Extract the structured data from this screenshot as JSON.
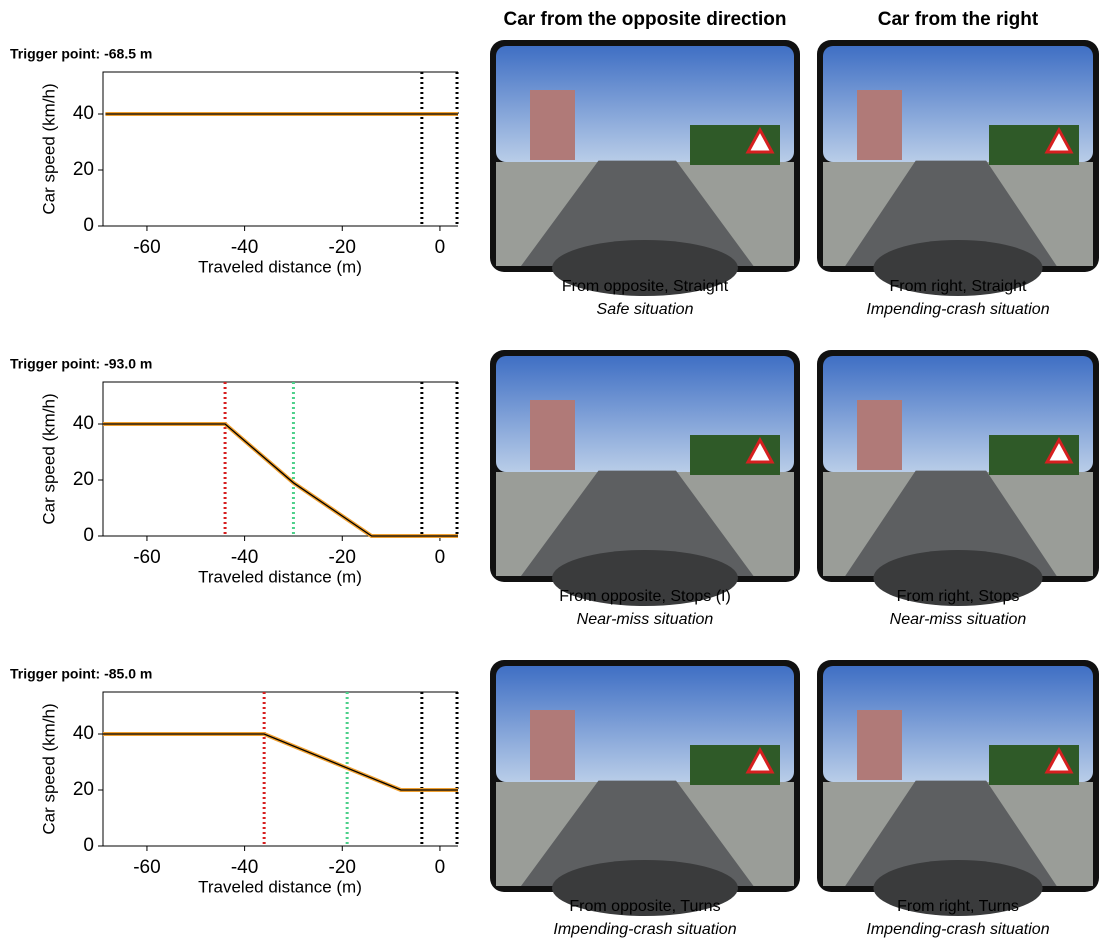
{
  "columns": [
    {
      "title": "Car from the opposite direction"
    },
    {
      "title": "Car from the right"
    }
  ],
  "panels": [
    [
      {
        "caption": "From opposite, Straight",
        "situation": "Safe situation"
      },
      {
        "caption": "From right, Straight",
        "situation": "Impending-crash situation"
      }
    ],
    [
      {
        "caption": "From opposite, Stops (I)",
        "situation": "Near-miss situation"
      },
      {
        "caption": "From right, Stops",
        "situation": "Near-miss situation"
      }
    ],
    [
      {
        "caption": "From opposite, Turns",
        "situation": "Impending-crash situation"
      },
      {
        "caption": "From right, Turns",
        "situation": "Impending-crash situation"
      }
    ]
  ],
  "chart_data": [
    {
      "type": "line",
      "title": "Trigger point: -68.5 m",
      "ylabel": "Car speed (km/h)",
      "xlabel": "Traveled distance (m)",
      "xlim": [
        -69,
        3.7
      ],
      "ylim": [
        0,
        55
      ],
      "xticks": [
        -60,
        -40,
        -20,
        0
      ],
      "yticks": [
        0,
        20,
        40
      ],
      "series": [
        {
          "color": "#f0a030",
          "edge_color": "#000000",
          "x": [
            -68.5,
            3.7
          ],
          "values": [
            40,
            40
          ]
        }
      ],
      "vlines": [
        {
          "x": -3.7,
          "color": "#000000"
        },
        {
          "x": 3.5,
          "color": "#000000"
        }
      ]
    },
    {
      "type": "line",
      "title": "Trigger point: -93.0 m",
      "ylabel": "Car speed (km/h)",
      "xlabel": "Traveled distance (m)",
      "xlim": [
        -69,
        3.7
      ],
      "ylim": [
        0,
        55
      ],
      "xticks": [
        -60,
        -40,
        -20,
        0
      ],
      "yticks": [
        0,
        20,
        40
      ],
      "series": [
        {
          "color": "#f0a030",
          "edge_color": "#000000",
          "x": [
            -69,
            -44,
            -30,
            -14,
            3.7
          ],
          "values": [
            40,
            40,
            19,
            0,
            0
          ]
        }
      ],
      "vlines": [
        {
          "x": -44,
          "color": "#d62020"
        },
        {
          "x": -30,
          "color": "#4cd08a"
        },
        {
          "x": -3.7,
          "color": "#000000"
        },
        {
          "x": 3.5,
          "color": "#000000"
        }
      ]
    },
    {
      "type": "line",
      "title": "Trigger point: -85.0 m",
      "ylabel": "Car speed (km/h)",
      "xlabel": "Traveled distance (m)",
      "xlim": [
        -69,
        3.7
      ],
      "ylim": [
        0,
        55
      ],
      "xticks": [
        -60,
        -40,
        -20,
        0
      ],
      "yticks": [
        0,
        20,
        40
      ],
      "series": [
        {
          "color": "#f0a030",
          "edge_color": "#000000",
          "x": [
            -69,
            -36,
            -8,
            3.7
          ],
          "values": [
            40,
            40,
            20,
            20
          ]
        }
      ],
      "vlines": [
        {
          "x": -36,
          "color": "#d62020"
        },
        {
          "x": -19,
          "color": "#4cd08a"
        },
        {
          "x": -3.7,
          "color": "#000000"
        },
        {
          "x": 3.5,
          "color": "#000000"
        }
      ]
    }
  ]
}
